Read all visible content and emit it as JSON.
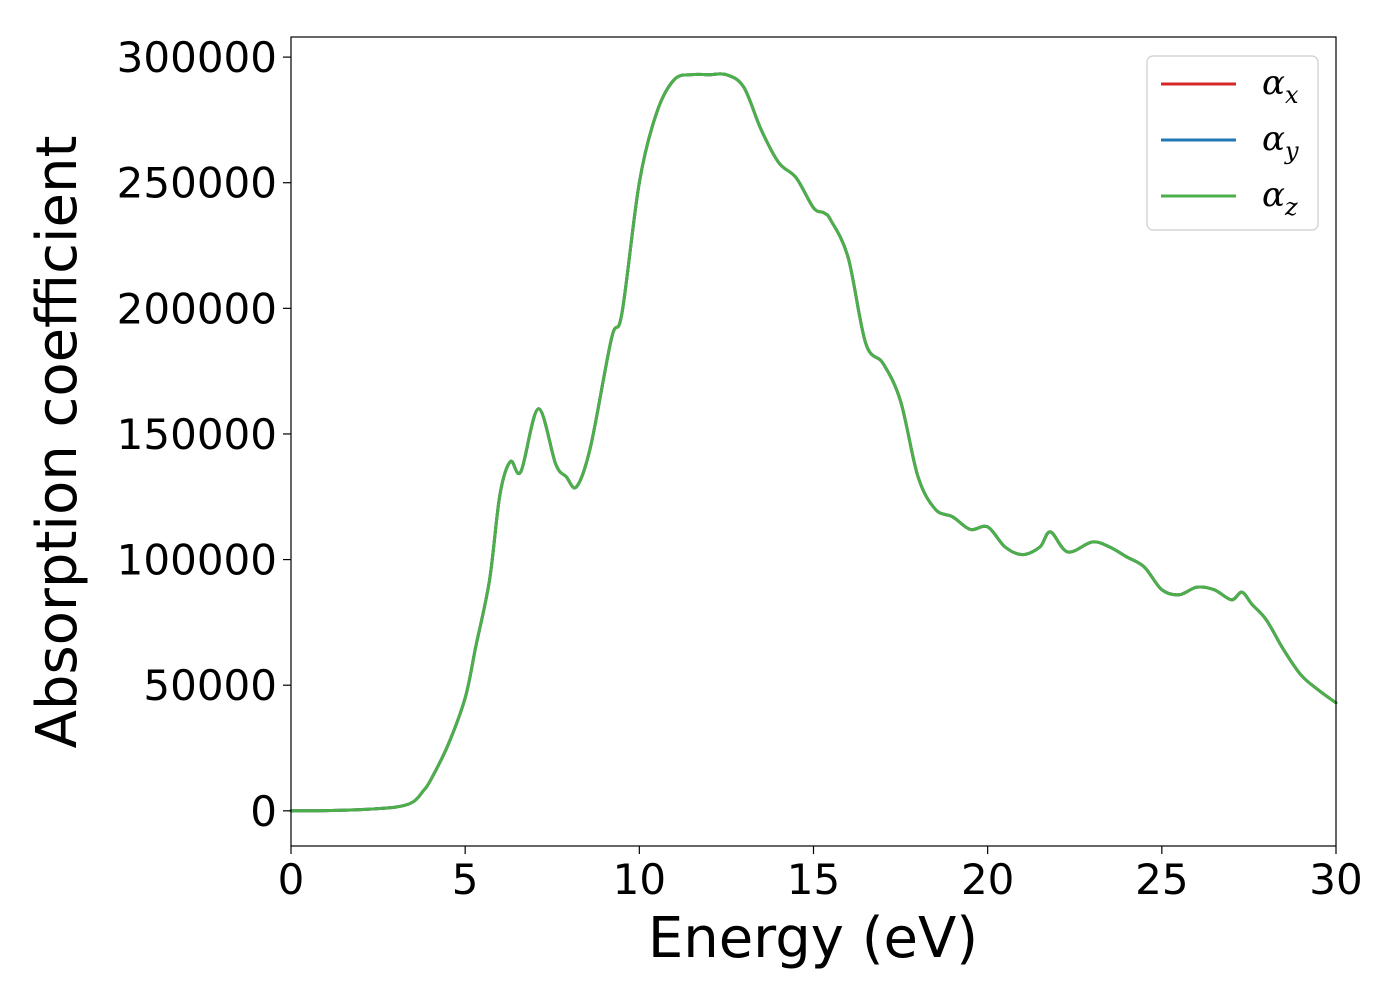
{
  "chart_data": {
    "type": "line",
    "xlabel": "Energy (eV)",
    "ylabel": "Absorption coefficient",
    "xlim": [
      0,
      30
    ],
    "ylim": [
      -14000,
      308000
    ],
    "xticks": [
      0,
      5,
      10,
      15,
      20,
      25,
      30
    ],
    "xtick_labels": [
      "0",
      "5",
      "10",
      "15",
      "20",
      "25",
      "30"
    ],
    "yticks": [
      0,
      50000,
      100000,
      150000,
      200000,
      250000,
      300000
    ],
    "ytick_labels": [
      "0",
      "50000",
      "100000",
      "150000",
      "200000",
      "250000",
      "300000"
    ],
    "grid": false,
    "legend_position": "top-right",
    "x": [
      0,
      1,
      2,
      3,
      3.5,
      3.8,
      4,
      4.5,
      5,
      5.3,
      5.7,
      6,
      6.3,
      6.6,
      7.1,
      7.6,
      7.9,
      8.2,
      8.6,
      9.2,
      9.5,
      10,
      10.5,
      11,
      11.5,
      12,
      12.5,
      13,
      13.5,
      14,
      14.5,
      15,
      15.3,
      15.5,
      16,
      16.5,
      17,
      17.5,
      18,
      18.5,
      19,
      19.5,
      20,
      20.5,
      21,
      21.5,
      21.8,
      22.3,
      23,
      23.5,
      24,
      24.5,
      25,
      25.5,
      26,
      26.5,
      27,
      27.3,
      27.6,
      28,
      28.5,
      29,
      29.5,
      30
    ],
    "series": [
      {
        "name": "αx",
        "name_base": "α",
        "name_sub": "x",
        "color": "#d62728",
        "values": [
          0,
          100,
          500,
          1500,
          3500,
          8000,
          12000,
          26000,
          45000,
          65000,
          92000,
          126000,
          139000,
          135000,
          160000,
          138000,
          133000,
          129000,
          145000,
          188000,
          198000,
          250000,
          278000,
          291000,
          293000,
          293000,
          293000,
          288000,
          271000,
          258000,
          252000,
          240000,
          238000,
          235000,
          220000,
          186000,
          178000,
          163000,
          133000,
          120000,
          117000,
          112000,
          113000,
          105000,
          102000,
          105000,
          111000,
          103000,
          107000,
          105000,
          101000,
          97000,
          88000,
          86000,
          89000,
          88000,
          84000,
          87000,
          82000,
          76000,
          64000,
          54000,
          48000,
          43000
        ]
      },
      {
        "name": "αy",
        "name_base": "α",
        "name_sub": "y",
        "color": "#1f77b4",
        "values": [
          0,
          100,
          500,
          1500,
          3500,
          8000,
          12000,
          26000,
          45000,
          65000,
          92000,
          126000,
          139000,
          135000,
          160000,
          138000,
          133000,
          129000,
          145000,
          188000,
          198000,
          250000,
          278000,
          291000,
          293000,
          293000,
          293000,
          288000,
          271000,
          258000,
          252000,
          240000,
          238000,
          235000,
          220000,
          186000,
          178000,
          163000,
          133000,
          120000,
          117000,
          112000,
          113000,
          105000,
          102000,
          105000,
          111000,
          103000,
          107000,
          105000,
          101000,
          97000,
          88000,
          86000,
          89000,
          88000,
          84000,
          87000,
          82000,
          76000,
          64000,
          54000,
          48000,
          43000
        ]
      },
      {
        "name": "αz",
        "name_base": "α",
        "name_sub": "z",
        "color": "#4daf4a",
        "values": [
          0,
          100,
          500,
          1500,
          3500,
          8000,
          12000,
          26000,
          45000,
          65000,
          92000,
          126000,
          139000,
          135000,
          160000,
          138000,
          133000,
          129000,
          145000,
          188000,
          198000,
          250000,
          278000,
          291000,
          293000,
          293000,
          293000,
          288000,
          271000,
          258000,
          252000,
          240000,
          238000,
          235000,
          220000,
          186000,
          178000,
          163000,
          133000,
          120000,
          117000,
          112000,
          113000,
          105000,
          102000,
          105000,
          111000,
          103000,
          107000,
          105000,
          101000,
          97000,
          88000,
          86000,
          89000,
          88000,
          84000,
          87000,
          82000,
          76000,
          64000,
          54000,
          48000,
          43000
        ]
      }
    ]
  }
}
